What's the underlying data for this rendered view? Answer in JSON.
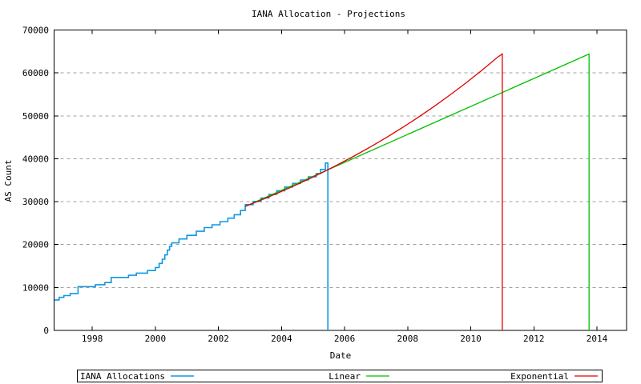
{
  "window": {
    "background": "#FFFFFF"
  },
  "chart_data": {
    "type": "line",
    "title": "IANA Allocation - Projections",
    "xlabel": "Date",
    "ylabel": "AS Count",
    "x_range": [
      1996.79,
      2014.94
    ],
    "y_range": [
      0,
      70000
    ],
    "x_tick_labels": [
      "1998",
      "2000",
      "2002",
      "2004",
      "2006",
      "2008",
      "2010",
      "2012",
      "2014"
    ],
    "x_tick_values": [
      1998,
      2000,
      2002,
      2004,
      2006,
      2008,
      2010,
      2012,
      2014
    ],
    "y_tick_labels": [
      "0",
      "10000",
      "20000",
      "30000",
      "40000",
      "50000",
      "60000",
      "70000"
    ],
    "y_tick_values": [
      0,
      10000,
      20000,
      30000,
      40000,
      50000,
      60000,
      70000
    ],
    "grid": {
      "horizontal": true,
      "vertical": false,
      "style": "dashed",
      "color": "#A0A0A0"
    },
    "axis_color": "#000000",
    "text_color": "#000000",
    "legend": {
      "position": "below",
      "border_color": "#000000",
      "background": "#FFFFFF"
    },
    "series": [
      {
        "name": "IANA Allocations",
        "color": "#1097E3",
        "style": "steps",
        "points": [
          [
            1996.8,
            7100
          ],
          [
            1996.95,
            7700
          ],
          [
            1997.1,
            8100
          ],
          [
            1997.3,
            8600
          ],
          [
            1997.55,
            10200
          ],
          [
            1998.1,
            10650
          ],
          [
            1998.4,
            11150
          ],
          [
            1998.6,
            12350
          ],
          [
            1999.15,
            12850
          ],
          [
            1999.4,
            13350
          ],
          [
            1999.75,
            13950
          ],
          [
            2000.0,
            14650
          ],
          [
            2000.12,
            15600
          ],
          [
            2000.22,
            16600
          ],
          [
            2000.3,
            17600
          ],
          [
            2000.38,
            18700
          ],
          [
            2000.45,
            19600
          ],
          [
            2000.52,
            20400
          ],
          [
            2000.75,
            21300
          ],
          [
            2001.0,
            22150
          ],
          [
            2001.3,
            23100
          ],
          [
            2001.55,
            23950
          ],
          [
            2001.8,
            24600
          ],
          [
            2002.05,
            25350
          ],
          [
            2002.3,
            26150
          ],
          [
            2002.5,
            26950
          ],
          [
            2002.7,
            27950
          ],
          [
            2002.85,
            29300
          ],
          [
            2003.1,
            30050
          ],
          [
            2003.35,
            30850
          ],
          [
            2003.6,
            31700
          ],
          [
            2003.85,
            32550
          ],
          [
            2004.1,
            33400
          ],
          [
            2004.35,
            34250
          ],
          [
            2004.6,
            35050
          ],
          [
            2004.85,
            35800
          ],
          [
            2005.1,
            36550
          ],
          [
            2005.24,
            37500
          ],
          [
            2005.39,
            39000
          ],
          [
            2005.47,
            39000
          ],
          [
            2005.47,
            0
          ]
        ]
      },
      {
        "name": "Linear",
        "color": "#00C000",
        "style": "line",
        "points": [
          [
            2002.85,
            28900
          ],
          [
            2013.75,
            64400
          ],
          [
            2013.75,
            0
          ]
        ]
      },
      {
        "name": "Exponential",
        "color": "#E00000",
        "style": "line",
        "points": [
          [
            2002.85,
            28900
          ],
          [
            2003.35,
            30360
          ],
          [
            2003.85,
            31900
          ],
          [
            2004.35,
            33510
          ],
          [
            2004.85,
            35210
          ],
          [
            2005.35,
            36990
          ],
          [
            2005.85,
            38860
          ],
          [
            2006.35,
            40830
          ],
          [
            2006.85,
            42890
          ],
          [
            2007.35,
            45060
          ],
          [
            2007.85,
            47340
          ],
          [
            2008.35,
            49740
          ],
          [
            2008.85,
            52250
          ],
          [
            2009.35,
            54900
          ],
          [
            2009.85,
            57670
          ],
          [
            2010.35,
            60590
          ],
          [
            2010.85,
            63660
          ],
          [
            2011.0,
            64400
          ],
          [
            2011.0,
            0
          ]
        ]
      }
    ]
  }
}
